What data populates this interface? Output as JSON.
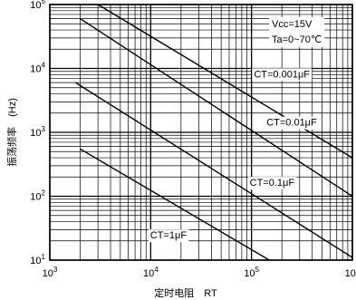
{
  "chart_data": {
    "type": "line",
    "xscale": "log",
    "yscale": "log",
    "xlim": [
      1000,
      1000000
    ],
    "ylim": [
      10,
      100000
    ],
    "xlabel": "定时电阻　RT",
    "ylabel": "振荡频率　(Hz)",
    "x_ticks": [
      {
        "base": "10",
        "exp": "3"
      },
      {
        "base": "10",
        "exp": "4"
      },
      {
        "base": "10",
        "exp": "5"
      },
      {
        "base": "10",
        "exp": "6"
      }
    ],
    "y_ticks": [
      {
        "base": "10",
        "exp": "1"
      },
      {
        "base": "10",
        "exp": "2"
      },
      {
        "base": "10",
        "exp": "3"
      },
      {
        "base": "10",
        "exp": "4"
      },
      {
        "base": "10",
        "exp": "5"
      }
    ],
    "conditions": [
      "Vcc=15V",
      "Ta=0~70℃"
    ],
    "grid": true,
    "series": [
      {
        "name": "CT=0.001μF",
        "x": [
          3000,
          1000000
        ],
        "y": [
          100000,
          400
        ]
      },
      {
        "name": "CT=0.01μF",
        "x": [
          2000,
          1000000
        ],
        "y": [
          60000,
          100
        ]
      },
      {
        "name": "CT=0.1μF",
        "x": [
          1800,
          1000000
        ],
        "y": [
          6000,
          11
        ]
      },
      {
        "name": "CT=1μF",
        "x": [
          2000,
          150000
        ],
        "y": [
          550,
          10
        ]
      }
    ]
  }
}
